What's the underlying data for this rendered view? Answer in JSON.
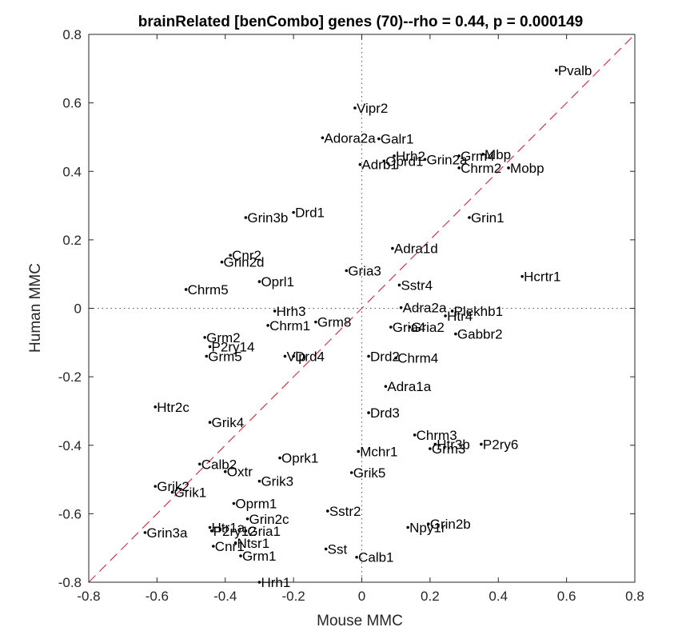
{
  "chart_data": {
    "type": "scatter",
    "title": "brainRelated [benCombo] genes (70)--rho = 0.44, p = 0.000149",
    "xlabel": "Mouse MMC",
    "ylabel": "Human MMC",
    "xlim": [
      -0.8,
      0.8
    ],
    "ylim": [
      -0.8,
      0.8
    ],
    "xticks": [
      "-0.8",
      "-0.6",
      "-0.4",
      "-0.2",
      "0",
      "0.2",
      "0.4",
      "0.6",
      "0.8"
    ],
    "yticks": [
      "-0.8",
      "-0.6",
      "-0.4",
      "-0.2",
      "0",
      "0.2",
      "0.4",
      "0.6",
      "0.8"
    ],
    "zero_lines": "dotted",
    "identity_line": {
      "style": "dashed",
      "color": "#c8384e"
    },
    "grid": false,
    "points": [
      {
        "label": "Pvalb",
        "x": 0.57,
        "y": 0.695
      },
      {
        "label": "Vipr2",
        "x": -0.02,
        "y": 0.585
      },
      {
        "label": "Adora2a",
        "x": -0.115,
        "y": 0.498
      },
      {
        "label": "Galr1",
        "x": 0.05,
        "y": 0.495
      },
      {
        "label": "Hrh2",
        "x": 0.095,
        "y": 0.445
      },
      {
        "label": "Mbp",
        "x": 0.355,
        "y": 0.45
      },
      {
        "label": "Grm4",
        "x": 0.285,
        "y": 0.445
      },
      {
        "label": "Grin2a",
        "x": 0.185,
        "y": 0.435
      },
      {
        "label": "Oprd1",
        "x": 0.065,
        "y": 0.43
      },
      {
        "label": "Adrb1",
        "x": -0.005,
        "y": 0.42
      },
      {
        "label": "Chrm2",
        "x": 0.285,
        "y": 0.41
      },
      {
        "label": "Mobp",
        "x": 0.43,
        "y": 0.41
      },
      {
        "label": "Grin1",
        "x": 0.315,
        "y": 0.265
      },
      {
        "label": "Drd1",
        "x": -0.2,
        "y": 0.28
      },
      {
        "label": "Grin3b",
        "x": -0.34,
        "y": 0.265
      },
      {
        "label": "Adra1d",
        "x": 0.09,
        "y": 0.175
      },
      {
        "label": "Cnr2",
        "x": -0.385,
        "y": 0.155
      },
      {
        "label": "Grin2d",
        "x": -0.41,
        "y": 0.135
      },
      {
        "label": "Gria3",
        "x": -0.045,
        "y": 0.11
      },
      {
        "label": "Hcrtr1",
        "x": 0.47,
        "y": 0.093
      },
      {
        "label": "Oprl1",
        "x": -0.3,
        "y": 0.078
      },
      {
        "label": "Sstr4",
        "x": 0.11,
        "y": 0.068
      },
      {
        "label": "Chrm5",
        "x": -0.515,
        "y": 0.055
      },
      {
        "label": "Adra2a",
        "x": 0.115,
        "y": 0.002
      },
      {
        "label": "Plekhb1",
        "x": 0.265,
        "y": -0.008
      },
      {
        "label": "Htr4",
        "x": 0.245,
        "y": -0.022
      },
      {
        "label": "Hrh3",
        "x": -0.255,
        "y": -0.008
      },
      {
        "label": "Grm8",
        "x": -0.135,
        "y": -0.04
      },
      {
        "label": "Chrm1",
        "x": -0.275,
        "y": -0.05
      },
      {
        "label": "Gria4",
        "x": 0.085,
        "y": -0.055
      },
      {
        "label": "Gria2",
        "x": 0.14,
        "y": -0.055
      },
      {
        "label": "Gabbr2",
        "x": 0.275,
        "y": -0.075
      },
      {
        "label": "Grm2",
        "x": -0.46,
        "y": -0.085
      },
      {
        "label": "P2ry14",
        "x": -0.445,
        "y": -0.112
      },
      {
        "label": "Grm5",
        "x": -0.455,
        "y": -0.14
      },
      {
        "label": "Vip",
        "x": -0.225,
        "y": -0.14
      },
      {
        "label": "Drd4",
        "x": -0.2,
        "y": -0.14
      },
      {
        "label": "Drd2",
        "x": 0.02,
        "y": -0.14
      },
      {
        "label": "Chrm4",
        "x": 0.1,
        "y": -0.145
      },
      {
        "label": "Adra1a",
        "x": 0.07,
        "y": -0.228
      },
      {
        "label": "Htr2c",
        "x": -0.605,
        "y": -0.288
      },
      {
        "label": "Drd3",
        "x": 0.02,
        "y": -0.305
      },
      {
        "label": "Grik4",
        "x": -0.445,
        "y": -0.333
      },
      {
        "label": "Chrm3",
        "x": 0.155,
        "y": -0.37
      },
      {
        "label": "Htr3b",
        "x": 0.215,
        "y": -0.397
      },
      {
        "label": "P2ry6",
        "x": 0.35,
        "y": -0.397
      },
      {
        "label": "Grm3",
        "x": 0.2,
        "y": -0.41
      },
      {
        "label": "Mchr1",
        "x": -0.01,
        "y": -0.418
      },
      {
        "label": "Oprk1",
        "x": -0.24,
        "y": -0.437
      },
      {
        "label": "Calb2",
        "x": -0.475,
        "y": -0.455
      },
      {
        "label": "Oxtr",
        "x": -0.4,
        "y": -0.477
      },
      {
        "label": "Grik5",
        "x": -0.03,
        "y": -0.48
      },
      {
        "label": "Grik3",
        "x": -0.3,
        "y": -0.505
      },
      {
        "label": "Grik2",
        "x": -0.605,
        "y": -0.52
      },
      {
        "label": "Grik1",
        "x": -0.555,
        "y": -0.537
      },
      {
        "label": "Oprm1",
        "x": -0.375,
        "y": -0.57
      },
      {
        "label": "Sstr2",
        "x": -0.1,
        "y": -0.592
      },
      {
        "label": "Grin2c",
        "x": -0.335,
        "y": -0.615
      },
      {
        "label": "Grin2b",
        "x": 0.195,
        "y": -0.63
      },
      {
        "label": "Npy1r",
        "x": 0.135,
        "y": -0.64
      },
      {
        "label": "Htr1a",
        "x": -0.445,
        "y": -0.64
      },
      {
        "label": "P2ry12",
        "x": -0.44,
        "y": -0.65
      },
      {
        "label": "Gria1",
        "x": -0.34,
        "y": -0.65
      },
      {
        "label": "Grin3a",
        "x": -0.635,
        "y": -0.655
      },
      {
        "label": "Ntsr1",
        "x": -0.37,
        "y": -0.685
      },
      {
        "label": "Cnr1",
        "x": -0.435,
        "y": -0.695
      },
      {
        "label": "Sst",
        "x": -0.105,
        "y": -0.703
      },
      {
        "label": "Grm1",
        "x": -0.355,
        "y": -0.723
      },
      {
        "label": "Calb1",
        "x": -0.015,
        "y": -0.727
      },
      {
        "label": "Hrh1",
        "x": -0.3,
        "y": -0.8
      }
    ]
  }
}
